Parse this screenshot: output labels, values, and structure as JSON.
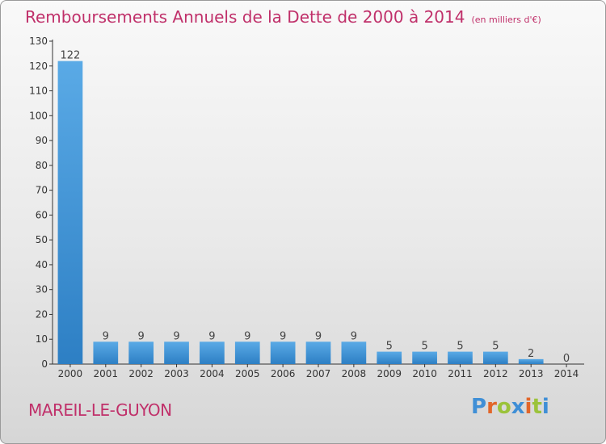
{
  "title": "Remboursements Annuels de la Dette de 2000 à 2014",
  "unit_note": "(en milliers d'€)",
  "commune": "MAREIL-LE-GUYON",
  "logo": {
    "text": "Proxiti",
    "colors": [
      "#3f8fd6",
      "#e2662a",
      "#9bc33b",
      "#3f8fd6",
      "#e2662a",
      "#9bc33b",
      "#3f8fd6"
    ]
  },
  "colors": {
    "title": "#c0306a",
    "bar_light": "#5aaae6",
    "bar_dark": "#2d7fc4",
    "axis": "#333333"
  },
  "chart_data": {
    "type": "bar",
    "categories": [
      "2000",
      "2001",
      "2002",
      "2003",
      "2004",
      "2005",
      "2006",
      "2007",
      "2008",
      "2009",
      "2010",
      "2011",
      "2012",
      "2013",
      "2014"
    ],
    "values": [
      122,
      9,
      9,
      9,
      9,
      9,
      9,
      9,
      9,
      5,
      5,
      5,
      5,
      2,
      0
    ],
    "data_labels": [
      "122",
      "9",
      "9",
      "9",
      "9",
      "9",
      "9",
      "9",
      "9",
      "5",
      "5",
      "5",
      "5",
      "2",
      "0"
    ],
    "ylim": [
      0,
      130
    ],
    "yticks": [
      0,
      10,
      20,
      30,
      40,
      50,
      60,
      70,
      80,
      90,
      100,
      110,
      120,
      130
    ],
    "xlabel": "",
    "ylabel": "",
    "grid": false,
    "legend": "none"
  }
}
